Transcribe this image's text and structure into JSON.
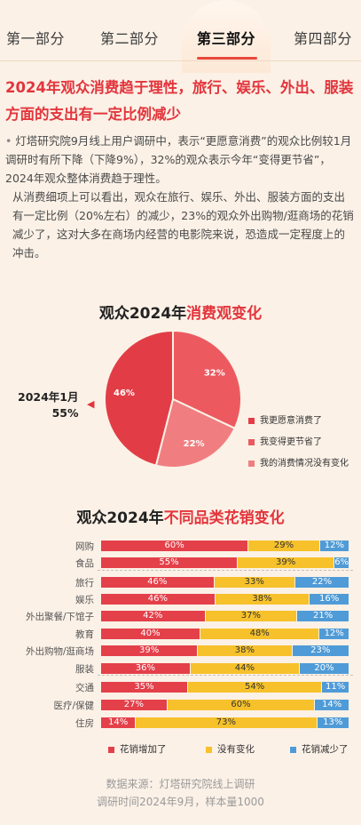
{
  "tabs": [
    "第一部分",
    "第二部分",
    "第三部分",
    "第四部分"
  ],
  "headline": "2024年观众消费趋于理性，旅行、娱乐、外出、服装方面的支出有一定比例减少",
  "paragraphs": [
    "灯塔研究院9月线上用户调研中，表示“更愿意消费”的观众比例较1月调研时有所下降（下降9%），32%的观众表示今年“变得更节省”，2024年观众整体消费趋于理性。",
    "从消费细项上可以看出，观众在旅行、娱乐、外出、服装方面的支出有一定比例（20%左右）的减少，23%的观众外出购物/逛商场的花销减少了，这对大多在商场内经营的电影院来说，恐造成一定程度上的冲击。"
  ],
  "pie": {
    "title_prefix": "观众2024年",
    "title_highlight": "消费观变化",
    "side_label_line1": "2024年1月",
    "side_label_line2": "55%",
    "legend": [
      "我更愿意消费了",
      "我变得更节省了",
      "我的消费情况没有变化"
    ]
  },
  "bars": {
    "title_prefix": "观众2024年",
    "title_highlight": "不同品类花销变化",
    "legend": [
      "花销增加了",
      "没有变化",
      "花销减少了"
    ]
  },
  "colors": {
    "red": "#e4404a",
    "pie_red": "#e23d46",
    "pie_mid": "#ec5a5f",
    "pie_light": "#f07e80",
    "yellow": "#f6c12a",
    "blue": "#4f9bd7",
    "accent": "#e3353c"
  },
  "source": {
    "line1": "数据来源：灯塔研究院线上调研",
    "line2": "调研时间2024年9月，样本量1000"
  },
  "chart_data": [
    {
      "type": "pie",
      "title": "观众2024年消费观变化",
      "labels": [
        "我更愿意消费了",
        "我变得更节省了",
        "我的消费情况没有变化"
      ],
      "values": [
        46,
        32,
        22
      ],
      "annotation": "2024年1月 55%"
    },
    {
      "type": "bar",
      "orientation": "horizontal",
      "stacked": true,
      "title": "观众2024年不同品类花销变化",
      "categories": [
        "网购",
        "食品",
        "旅行",
        "娱乐",
        "外出聚餐/下馆子",
        "教育",
        "外出购物/逛商场",
        "服装",
        "交通",
        "医疗/保健",
        "住房"
      ],
      "series": [
        {
          "name": "花销增加了",
          "values": [
            60,
            55,
            46,
            46,
            42,
            40,
            39,
            36,
            35,
            27,
            14
          ]
        },
        {
          "name": "没有变化",
          "values": [
            29,
            39,
            33,
            38,
            37,
            48,
            38,
            44,
            54,
            60,
            73
          ]
        },
        {
          "name": "花销减少了",
          "values": [
            12,
            6,
            22,
            16,
            21,
            12,
            23,
            20,
            11,
            14,
            13
          ]
        }
      ],
      "legend_position": "bottom"
    }
  ]
}
